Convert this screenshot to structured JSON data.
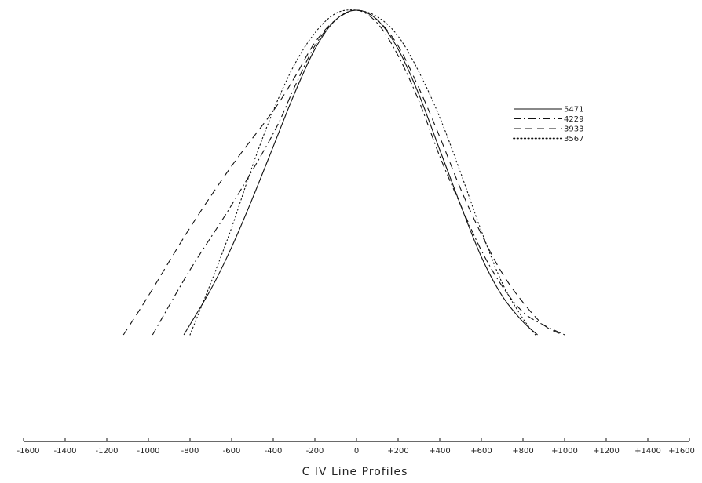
{
  "chart_data": {
    "type": "line",
    "title": "C IV   Line Profiles",
    "xlabel": "",
    "ylabel": "",
    "xlim": [
      -1600,
      1600
    ],
    "ylim": [
      0,
      1
    ],
    "x_tick_labels": [
      "-1600",
      "-1400",
      "-1200",
      "-1000",
      "-800",
      "-600",
      "-400",
      "-200",
      "0",
      "+200",
      "+400",
      "+600",
      "+800",
      "+1000",
      "+1200",
      "+1400",
      "+1600"
    ],
    "x_tick_values": [
      -1600,
      -1400,
      -1200,
      -1000,
      -800,
      -600,
      -400,
      -200,
      0,
      200,
      400,
      600,
      800,
      1000,
      1200,
      1400,
      1600
    ],
    "legend_position": "top-right",
    "grid": false,
    "series": [
      {
        "name": "5471",
        "dash": "solid",
        "x": [
          -830,
          -700,
          -600,
          -500,
          -400,
          -300,
          -200,
          -100,
          0,
          100,
          200,
          300,
          400,
          500,
          600,
          700,
          800,
          870
        ],
        "y": [
          0.0,
          0.14,
          0.27,
          0.42,
          0.58,
          0.74,
          0.88,
          0.97,
          1.0,
          0.97,
          0.88,
          0.74,
          0.57,
          0.4,
          0.24,
          0.12,
          0.04,
          0.0
        ]
      },
      {
        "name": "4229",
        "dash": "dash-dot",
        "x": [
          -980,
          -800,
          -600,
          -400,
          -300,
          -200,
          -100,
          0,
          100,
          200,
          300,
          400,
          500,
          600,
          700,
          800,
          900,
          1000
        ],
        "y": [
          0.0,
          0.2,
          0.4,
          0.62,
          0.76,
          0.89,
          0.97,
          1.0,
          0.96,
          0.86,
          0.72,
          0.55,
          0.4,
          0.26,
          0.15,
          0.07,
          0.03,
          0.0
        ]
      },
      {
        "name": "3933",
        "dash": "dash",
        "x": [
          -1120,
          -1000,
          -800,
          -600,
          -400,
          -300,
          -200,
          -100,
          0,
          100,
          200,
          300,
          400,
          500,
          600,
          700,
          800,
          900,
          990
        ],
        "y": [
          0.0,
          0.12,
          0.33,
          0.52,
          0.69,
          0.79,
          0.9,
          0.97,
          1.0,
          0.97,
          0.89,
          0.76,
          0.61,
          0.45,
          0.31,
          0.19,
          0.1,
          0.03,
          0.0
        ]
      },
      {
        "name": "3567",
        "dash": "dotted",
        "x": [
          -800,
          -700,
          -600,
          -500,
          -400,
          -300,
          -200,
          -100,
          0,
          100,
          200,
          300,
          400,
          500,
          600,
          700,
          800,
          860
        ],
        "y": [
          0.0,
          0.16,
          0.33,
          0.52,
          0.69,
          0.83,
          0.93,
          0.99,
          1.0,
          0.98,
          0.92,
          0.81,
          0.67,
          0.5,
          0.32,
          0.16,
          0.05,
          0.0
        ]
      }
    ]
  }
}
